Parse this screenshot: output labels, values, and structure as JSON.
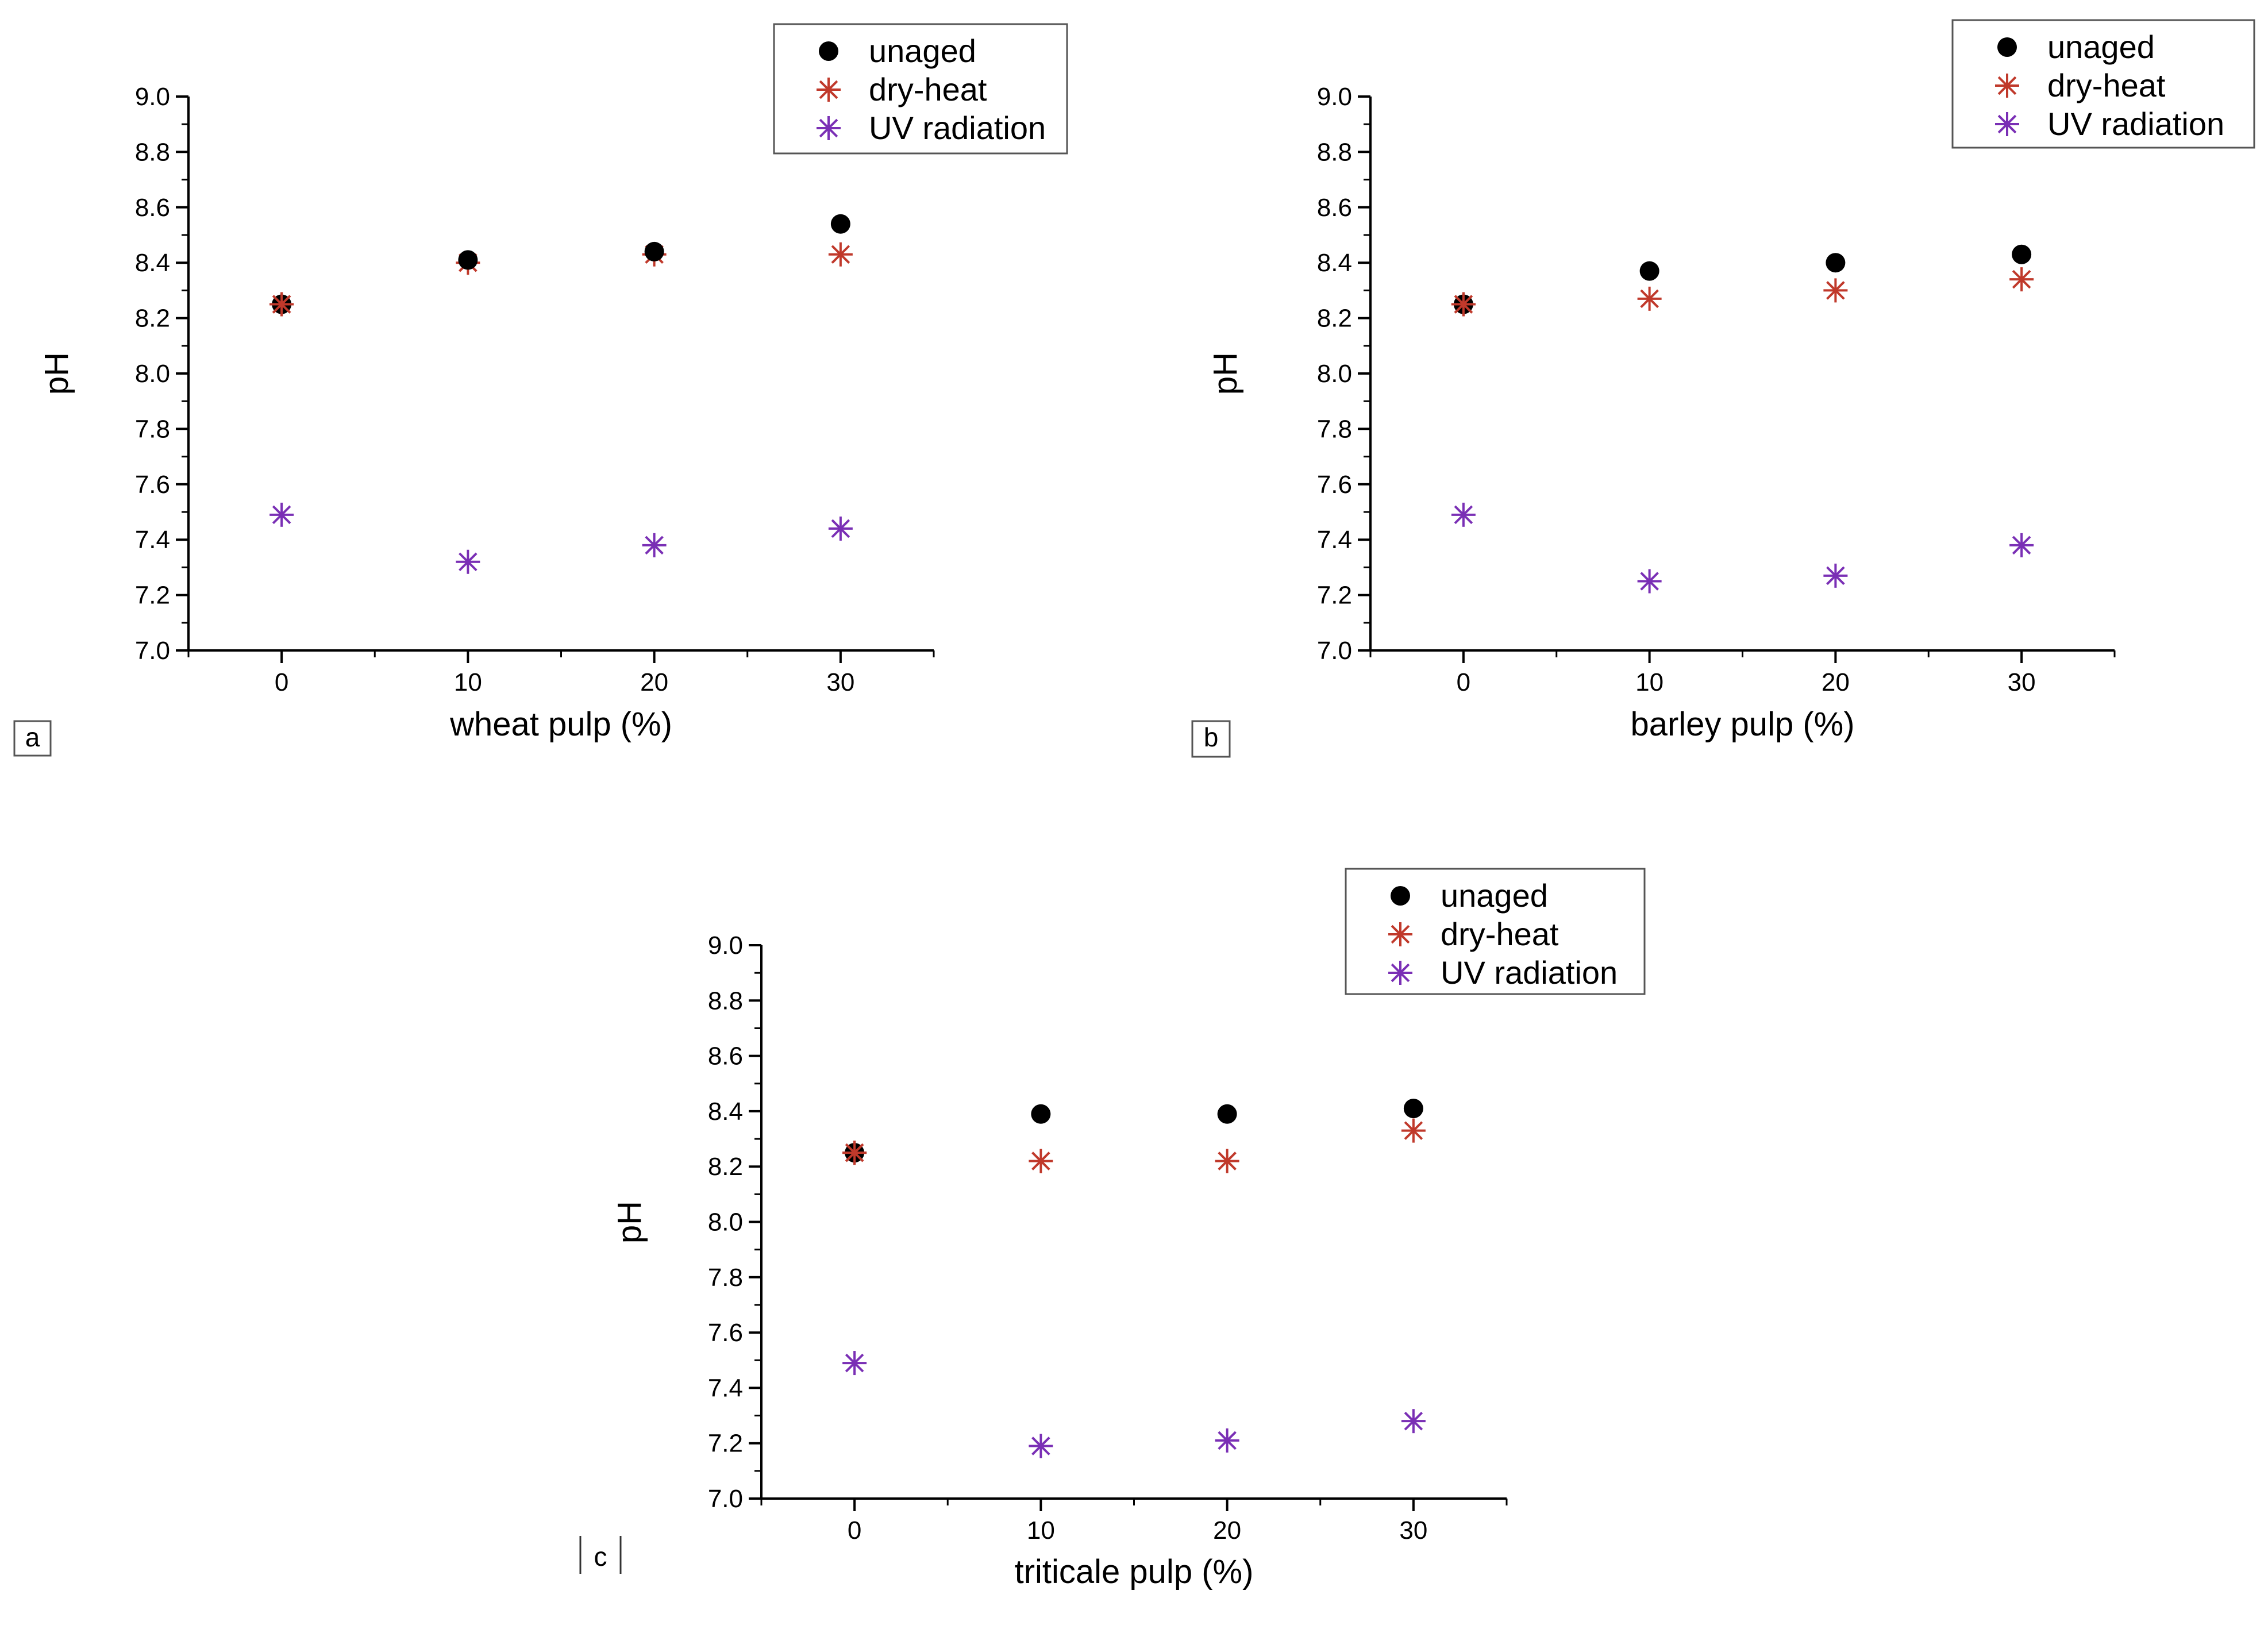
{
  "colors": {
    "unaged": "#000000",
    "dry_heat": "#c0392b",
    "uv_radiation": "#7a2fb5",
    "axis": "#000000",
    "background": "#ffffff"
  },
  "chart_data": [
    {
      "type": "scatter",
      "panel_label": "a",
      "xlabel": "wheat pulp (%)",
      "ylabel": "pH",
      "x": [
        0,
        10,
        20,
        30
      ],
      "xticks": [
        "0",
        "10",
        "20",
        "30"
      ],
      "xlim": [
        -5,
        35
      ],
      "ylim": [
        7.0,
        9.0
      ],
      "yticks": [
        "7.0",
        "7.2",
        "7.4",
        "7.6",
        "7.8",
        "8.0",
        "8.2",
        "8.4",
        "8.6",
        "8.8",
        "9.0"
      ],
      "legend": [
        "unaged",
        "dry-heat",
        "UV radiation"
      ],
      "legend_position": "top-right",
      "series": [
        {
          "name": "unaged",
          "marker": "circle",
          "values": [
            8.25,
            8.41,
            8.44,
            8.54
          ]
        },
        {
          "name": "dry-heat",
          "marker": "asterisk",
          "values": [
            8.25,
            8.4,
            8.43,
            8.43
          ]
        },
        {
          "name": "UV radiation",
          "marker": "asterisk",
          "values": [
            7.49,
            7.32,
            7.38,
            7.44
          ]
        }
      ]
    },
    {
      "type": "scatter",
      "panel_label": "b",
      "xlabel": "barley pulp (%)",
      "ylabel": "pH",
      "x": [
        0,
        10,
        20,
        30
      ],
      "xticks": [
        "0",
        "10",
        "20",
        "30"
      ],
      "xlim": [
        -5,
        35
      ],
      "ylim": [
        7.0,
        9.0
      ],
      "yticks": [
        "7.0",
        "7.2",
        "7.4",
        "7.6",
        "7.8",
        "8.0",
        "8.2",
        "8.4",
        "8.6",
        "8.8",
        "9.0"
      ],
      "legend": [
        "unaged",
        "dry-heat",
        "UV radiation"
      ],
      "legend_position": "top-right",
      "series": [
        {
          "name": "unaged",
          "marker": "circle",
          "values": [
            8.25,
            8.37,
            8.4,
            8.43
          ]
        },
        {
          "name": "dry-heat",
          "marker": "asterisk",
          "values": [
            8.25,
            8.27,
            8.3,
            8.34
          ]
        },
        {
          "name": "UV radiation",
          "marker": "asterisk",
          "values": [
            7.49,
            7.25,
            7.27,
            7.38
          ]
        }
      ]
    },
    {
      "type": "scatter",
      "panel_label": "c",
      "xlabel": "triticale pulp (%)",
      "ylabel": "pH",
      "x": [
        0,
        10,
        20,
        30
      ],
      "xticks": [
        "0",
        "10",
        "20",
        "30"
      ],
      "xlim": [
        -5,
        35
      ],
      "ylim": [
        7.0,
        9.0
      ],
      "yticks": [
        "7.0",
        "7.2",
        "7.4",
        "7.6",
        "7.8",
        "8.0",
        "8.2",
        "8.4",
        "8.6",
        "8.8",
        "9.0"
      ],
      "legend": [
        "unaged",
        "dry-heat",
        "UV radiation"
      ],
      "legend_position": "top-right",
      "series": [
        {
          "name": "unaged",
          "marker": "circle",
          "values": [
            8.25,
            8.39,
            8.39,
            8.41
          ]
        },
        {
          "name": "dry-heat",
          "marker": "asterisk",
          "values": [
            8.25,
            8.22,
            8.22,
            8.33
          ]
        },
        {
          "name": "UV radiation",
          "marker": "asterisk",
          "values": [
            7.49,
            7.19,
            7.21,
            7.28
          ]
        }
      ]
    }
  ]
}
